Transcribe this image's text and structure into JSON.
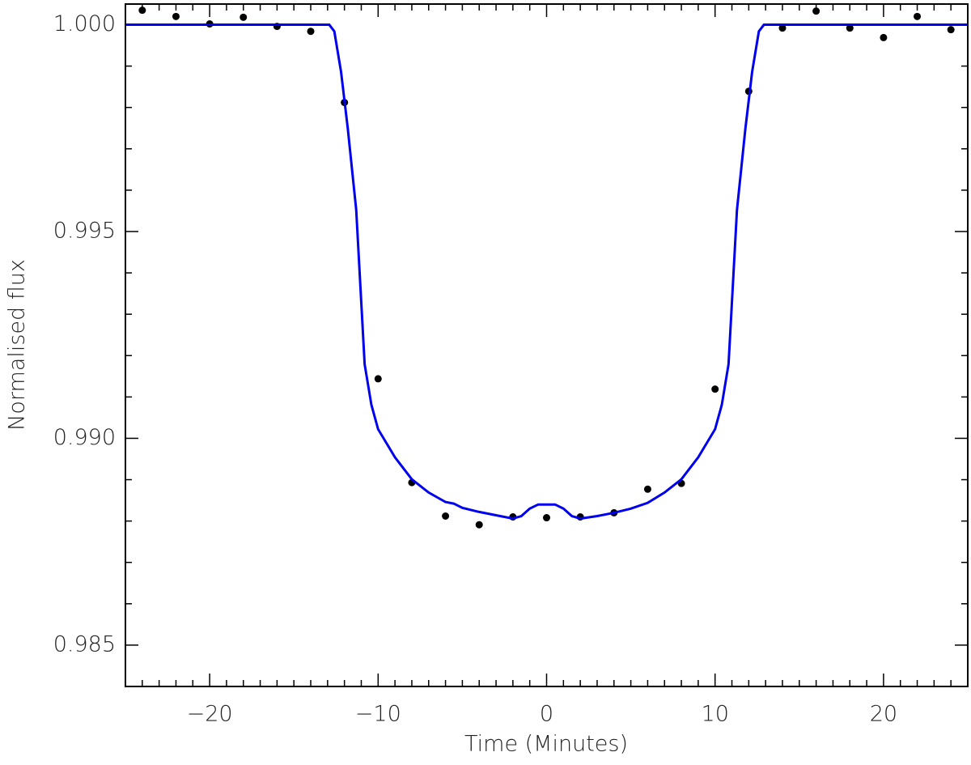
{
  "chart_data": {
    "type": "scatter",
    "xlabel": "Time (Minutes)",
    "ylabel": "Normalised flux",
    "xlim": [
      -25,
      25
    ],
    "ylim": [
      0.984,
      1.0005
    ],
    "xticks": [
      {
        "value": -20,
        "label": "−20"
      },
      {
        "value": -10,
        "label": "−10"
      },
      0,
      10,
      20
    ],
    "yticks": [
      {
        "value": 0.985,
        "label": "0.985"
      },
      {
        "value": 0.99,
        "label": "0.990"
      },
      {
        "value": 0.995,
        "label": "0.995"
      },
      {
        "value": 1.0,
        "label": "1.000"
      }
    ],
    "xminorticks": [
      -25,
      -24,
      -23,
      -22,
      -21,
      -19,
      -18,
      -17,
      -16,
      -15,
      -14,
      -13,
      -12,
      -11,
      -9,
      -8,
      -7,
      -6,
      -5,
      -4,
      -3,
      -2,
      -1,
      1,
      2,
      3,
      4,
      5,
      6,
      7,
      8,
      9,
      11,
      12,
      13,
      14,
      15,
      16,
      17,
      18,
      19,
      21,
      22,
      23,
      24,
      25
    ],
    "yminorticks": [
      0.984,
      0.986,
      0.987,
      0.988,
      0.989,
      0.991,
      0.992,
      0.993,
      0.994,
      0.996,
      0.997,
      0.998,
      0.999
    ],
    "series": [
      {
        "type": "scatter",
        "color": "#000000",
        "x": [
          -24,
          -22,
          -20,
          -18,
          -16,
          -14,
          -12,
          -10,
          -8,
          -6,
          -4,
          -2,
          0,
          2,
          4,
          6,
          8,
          10,
          12,
          14,
          16,
          18,
          20,
          22,
          24
        ],
        "values": [
          1.00035,
          1.0002,
          1.00002,
          1.00018,
          0.99996,
          0.99984,
          0.99812,
          0.99144,
          0.98893,
          0.98812,
          0.98791,
          0.9881,
          0.98808,
          0.9881,
          0.9882,
          0.98877,
          0.98891,
          0.99119,
          0.99839,
          0.99992,
          1.00033,
          0.99992,
          0.99969,
          1.0002,
          0.99988
        ]
      },
      {
        "type": "line",
        "color": "#0000ee",
        "x": [
          -25,
          -12.9,
          -12.6,
          -12.2,
          -11.8,
          -11.3,
          -10.8,
          -10.4,
          -10,
          -9,
          -8,
          -7,
          -6,
          -5.5,
          -5,
          -4,
          -3,
          -2,
          -1.5,
          -1,
          -0.5,
          0.5,
          1,
          1.5,
          2,
          3,
          4,
          5,
          6,
          7,
          8,
          9,
          10,
          10.4,
          10.8,
          11.3,
          11.8,
          12.2,
          12.6,
          12.9,
          25
        ],
        "values": [
          1.0,
          1.0,
          0.99984,
          0.99886,
          0.99749,
          0.99552,
          0.99179,
          0.99081,
          0.99022,
          0.98954,
          0.98901,
          0.98869,
          0.98846,
          0.98842,
          0.98832,
          0.98822,
          0.98814,
          0.98806,
          0.98812,
          0.9883,
          0.9884,
          0.9884,
          0.9883,
          0.98812,
          0.98806,
          0.98812,
          0.9882,
          0.9883,
          0.98844,
          0.98869,
          0.98901,
          0.98954,
          0.99022,
          0.99081,
          0.99179,
          0.99552,
          0.99749,
          0.99886,
          0.99984,
          1.0,
          1.0
        ]
      }
    ]
  }
}
